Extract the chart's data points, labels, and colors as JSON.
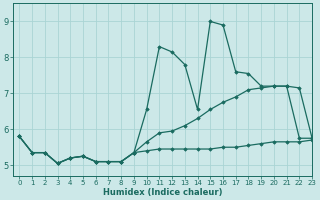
{
  "xlabel": "Humidex (Indice chaleur)",
  "bg_color": "#cce8e8",
  "grid_color": "#aad4d4",
  "line_color": "#1a6b60",
  "xlim": [
    -0.5,
    23
  ],
  "ylim": [
    4.7,
    9.5
  ],
  "xticks": [
    0,
    1,
    2,
    3,
    4,
    5,
    6,
    7,
    8,
    9,
    10,
    11,
    12,
    13,
    14,
    15,
    16,
    17,
    18,
    19,
    20,
    21,
    22,
    23
  ],
  "yticks": [
    5,
    6,
    7,
    8,
    9
  ],
  "series": [
    [
      5.8,
      5.35,
      5.35,
      5.05,
      5.2,
      5.25,
      5.1,
      5.1,
      5.1,
      5.35,
      6.55,
      8.3,
      8.15,
      7.8,
      6.55,
      9.0,
      8.9,
      7.6,
      7.55,
      7.2,
      7.2,
      7.2,
      5.75,
      5.75
    ],
    [
      5.8,
      5.35,
      5.35,
      5.05,
      5.2,
      5.25,
      5.1,
      5.1,
      5.1,
      5.35,
      5.65,
      5.9,
      5.95,
      6.1,
      6.3,
      6.55,
      6.75,
      6.9,
      7.1,
      7.15,
      7.2,
      7.2,
      7.15,
      5.75
    ],
    [
      5.8,
      5.35,
      5.35,
      5.05,
      5.2,
      5.25,
      5.1,
      5.1,
      5.1,
      5.35,
      5.4,
      5.45,
      5.45,
      5.45,
      5.45,
      5.45,
      5.5,
      5.5,
      5.55,
      5.6,
      5.65,
      5.65,
      5.65,
      5.7
    ]
  ]
}
